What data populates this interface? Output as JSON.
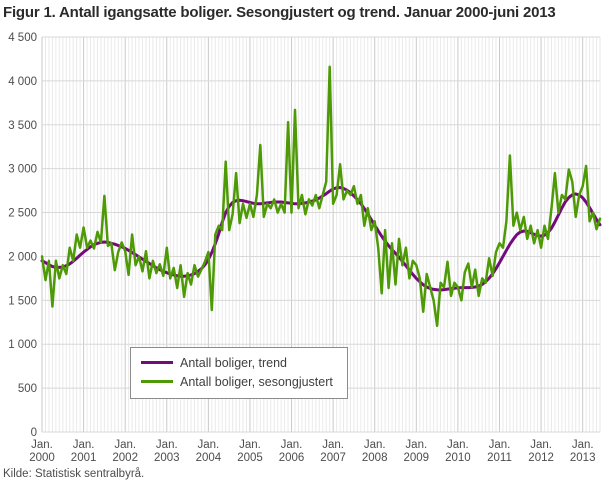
{
  "title": "Figur 1. Antall igangsatte boliger. Sesongjustert og trend. Januar 2000-juni 2013",
  "source": "Kilde: Statistisk sentralbyrå.",
  "colors": {
    "trend": "#740b7d",
    "seasonal": "#4e9a06",
    "grid_minor": "#eaeaea",
    "grid_year": "#c9c9c9",
    "grid_horizontal": "#d8d8d8",
    "text": "#4d4d4d",
    "title_text": "#2b2b2b",
    "legend_border": "#8c8c8c"
  },
  "chart_data": {
    "type": "line",
    "title": "Figur 1. Antall igangsatte boliger. Sesongjustert og trend. Januar 2000-juni 2013",
    "xlabel": "",
    "ylabel": "",
    "ylim": [
      0,
      4500
    ],
    "ytick_step": 500,
    "grid": {
      "minor_color": "#eaeaea",
      "year_color": "#c9c9c9",
      "h_color": "#d8d8d8"
    },
    "legend_position": "bottom-left-inside",
    "x_tick_prefix": "Jan.",
    "x_tick_years": [
      "2000",
      "2001",
      "2002",
      "2003",
      "2004",
      "2005",
      "2006",
      "2007",
      "2008",
      "2009",
      "2010",
      "2011",
      "2012",
      "2013"
    ],
    "x_range_months": "2000-01 to 2013-06",
    "y_tick_values": [
      0,
      500,
      1000,
      1500,
      2000,
      2500,
      3000,
      3500,
      4000,
      4500
    ],
    "y_tick_labels": [
      "0",
      "500",
      "1 000",
      "1 500",
      "2 000",
      "2 500",
      "3 000",
      "3 500",
      "4 000",
      "4 500"
    ],
    "series": [
      {
        "name": "Antall boliger, trend",
        "color": "#740b7d",
        "width": 3,
        "values": [
          1950,
          1930,
          1905,
          1885,
          1875,
          1875,
          1880,
          1895,
          1915,
          1945,
          1980,
          2015,
          2050,
          2080,
          2110,
          2135,
          2150,
          2160,
          2165,
          2160,
          2150,
          2140,
          2125,
          2110,
          2090,
          2070,
          2045,
          2020,
          1995,
          1970,
          1945,
          1920,
          1895,
          1870,
          1850,
          1830,
          1815,
          1800,
          1790,
          1780,
          1775,
          1775,
          1780,
          1790,
          1805,
          1830,
          1860,
          1905,
          1965,
          2045,
          2145,
          2260,
          2390,
          2500,
          2570,
          2615,
          2635,
          2640,
          2635,
          2625,
          2615,
          2605,
          2600,
          2600,
          2605,
          2610,
          2615,
          2620,
          2620,
          2620,
          2615,
          2610,
          2605,
          2600,
          2600,
          2605,
          2610,
          2620,
          2630,
          2645,
          2665,
          2690,
          2715,
          2745,
          2770,
          2782,
          2785,
          2775,
          2755,
          2725,
          2690,
          2648,
          2600,
          2545,
          2485,
          2420,
          2355,
          2292,
          2230,
          2175,
          2122,
          2078,
          2035,
          1990,
          1945,
          1895,
          1845,
          1795,
          1750,
          1712,
          1678,
          1652,
          1635,
          1625,
          1620,
          1618,
          1622,
          1628,
          1632,
          1638,
          1642,
          1645,
          1645,
          1645,
          1647,
          1652,
          1662,
          1682,
          1712,
          1752,
          1802,
          1862,
          1930,
          2000,
          2070,
          2140,
          2198,
          2248,
          2278,
          2290,
          2285,
          2270,
          2252,
          2238,
          2232,
          2242,
          2272,
          2322,
          2392,
          2472,
          2552,
          2622,
          2672,
          2702,
          2712,
          2700,
          2668,
          2618,
          2555,
          2488,
          2420,
          2360
        ]
      },
      {
        "name": "Antall boliger, sesongjustert",
        "color": "#4e9a06",
        "width": 2.5,
        "values": [
          2000,
          1730,
          1950,
          1430,
          1950,
          1750,
          1900,
          1800,
          2100,
          1950,
          2250,
          2100,
          2330,
          2100,
          2180,
          2090,
          2280,
          2160,
          2690,
          2120,
          2150,
          1845,
          2050,
          2160,
          2060,
          1790,
          2250,
          1900,
          2000,
          1830,
          2060,
          1750,
          1950,
          1810,
          1910,
          1780,
          2100,
          1750,
          1870,
          1640,
          1900,
          1540,
          1810,
          1680,
          1900,
          1770,
          1850,
          1940,
          2050,
          1390,
          2250,
          2350,
          2300,
          3080,
          2300,
          2480,
          2950,
          2380,
          2600,
          2440,
          2600,
          2450,
          2700,
          3270,
          2450,
          2600,
          2550,
          2650,
          2500,
          2600,
          2500,
          3530,
          2500,
          3670,
          2550,
          2700,
          2480,
          2650,
          2580,
          2700,
          2550,
          2700,
          2850,
          4160,
          2600,
          2700,
          3050,
          2650,
          2750,
          2700,
          2800,
          2600,
          2700,
          2350,
          2550,
          2300,
          2400,
          2100,
          1580,
          2300,
          1640,
          2150,
          1680,
          2200,
          1900,
          2100,
          1750,
          1950,
          1900,
          1750,
          1370,
          1800,
          1650,
          1500,
          1210,
          1700,
          1650,
          1940,
          1550,
          1700,
          1650,
          1500,
          1820,
          1920,
          1650,
          1850,
          1550,
          1750,
          1700,
          1980,
          1780,
          2050,
          2150,
          2100,
          2400,
          3150,
          2350,
          2500,
          2300,
          2450,
          2200,
          2350,
          2150,
          2300,
          2100,
          2350,
          2200,
          2550,
          2950,
          2500,
          2700,
          2650,
          2990,
          2850,
          2450,
          2700,
          2800,
          3030,
          2400,
          2500,
          2310,
          2430
        ]
      }
    ]
  },
  "legend": {
    "items": [
      {
        "label": "Antall boliger, trend",
        "color": "#740b7d"
      },
      {
        "label": "Antall boliger, sesongjustert",
        "color": "#4e9a06"
      }
    ]
  }
}
